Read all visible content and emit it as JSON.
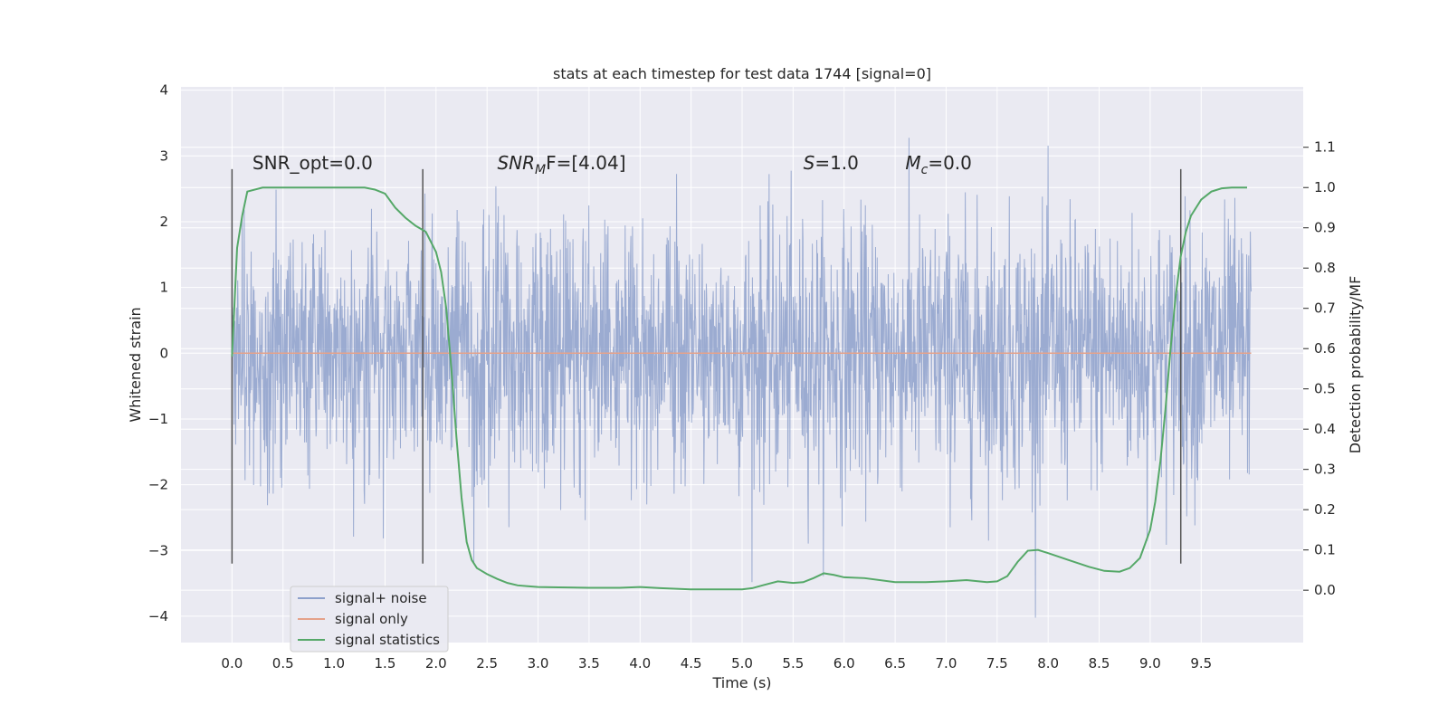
{
  "chart_data": {
    "type": "line",
    "title": "stats at each timestep for test data 1744 [signal=0]",
    "xlabel": "Time (s)",
    "ylabel": "Whitened strain",
    "ylabel_right": "Detection probability/MF",
    "xlim": [
      -0.5,
      10.5
    ],
    "ylim": [
      -4.4,
      4.05
    ],
    "ylim_right": [
      -0.13,
      1.25
    ],
    "xticks": [
      0.0,
      0.5,
      1.0,
      1.5,
      2.0,
      2.5,
      3.0,
      3.5,
      4.0,
      4.5,
      5.0,
      5.5,
      6.0,
      6.5,
      7.0,
      7.5,
      8.0,
      8.5,
      9.0,
      9.5
    ],
    "xtick_labels": [
      "0.0",
      "0.5",
      "1.0",
      "1.5",
      "2.0",
      "2.5",
      "3.0",
      "3.5",
      "4.0",
      "4.5",
      "5.0",
      "5.5",
      "6.0",
      "6.5",
      "7.0",
      "7.5",
      "8.0",
      "8.5",
      "9.0",
      "9.5"
    ],
    "yticks": [
      -4,
      -3,
      -2,
      -1,
      0,
      1,
      2,
      3,
      4
    ],
    "ytick_labels": [
      "−4",
      "−3",
      "−2",
      "−1",
      "0",
      "1",
      "2",
      "3",
      "4"
    ],
    "yticks_right": [
      0.0,
      0.1,
      0.2,
      0.3,
      0.4,
      0.5,
      0.6,
      0.7,
      0.8,
      0.9,
      1.0,
      1.1
    ],
    "ytick_right_labels": [
      "0.0",
      "0.1",
      "0.2",
      "0.3",
      "0.4",
      "0.5",
      "0.6",
      "0.7",
      "0.8",
      "0.9",
      "1.0",
      "1.1"
    ],
    "grid": true,
    "legend_position": "lower-left",
    "series": [
      {
        "name": "signal+ noise",
        "color": "#8da0cb",
        "axis": "left",
        "x_range": [
          0.0,
          9.99
        ],
        "description_values": {
          "core_band": [
            -1.4,
            1.6
          ],
          "extreme_min": -4.05,
          "extreme_max": 3.65
        }
      },
      {
        "name": "signal only",
        "color": "#e5a28a",
        "axis": "left",
        "x": [
          0.0,
          9.99
        ],
        "y": [
          0.0,
          0.0
        ]
      },
      {
        "name": "signal statistics",
        "color": "#55a868",
        "axis": "right",
        "x": [
          0.0,
          0.05,
          0.1,
          0.15,
          0.3,
          0.5,
          1.0,
          1.3,
          1.4,
          1.5,
          1.6,
          1.7,
          1.8,
          1.9,
          2.0,
          2.05,
          2.1,
          2.15,
          2.2,
          2.25,
          2.3,
          2.35,
          2.4,
          2.5,
          2.6,
          2.7,
          2.8,
          2.9,
          3.0,
          3.2,
          3.5,
          3.8,
          4.0,
          4.2,
          4.5,
          4.8,
          5.0,
          5.1,
          5.2,
          5.35,
          5.5,
          5.6,
          5.7,
          5.8,
          5.9,
          6.0,
          6.2,
          6.5,
          6.8,
          7.0,
          7.2,
          7.4,
          7.5,
          7.6,
          7.7,
          7.8,
          7.9,
          8.0,
          8.2,
          8.4,
          8.55,
          8.7,
          8.8,
          8.9,
          9.0,
          9.05,
          9.1,
          9.15,
          9.2,
          9.25,
          9.3,
          9.35,
          9.4,
          9.5,
          9.6,
          9.7,
          9.8,
          9.9,
          9.95
        ],
        "y": [
          0.58,
          0.85,
          0.93,
          0.99,
          1.0,
          1.0,
          1.0,
          1.0,
          0.995,
          0.985,
          0.95,
          0.925,
          0.905,
          0.89,
          0.84,
          0.79,
          0.7,
          0.55,
          0.38,
          0.23,
          0.12,
          0.075,
          0.055,
          0.04,
          0.028,
          0.018,
          0.012,
          0.01,
          0.008,
          0.007,
          0.006,
          0.006,
          0.008,
          0.005,
          0.002,
          0.002,
          0.002,
          0.005,
          0.012,
          0.022,
          0.018,
          0.02,
          0.03,
          0.042,
          0.038,
          0.032,
          0.03,
          0.02,
          0.02,
          0.022,
          0.025,
          0.02,
          0.022,
          0.035,
          0.07,
          0.098,
          0.1,
          0.092,
          0.075,
          0.058,
          0.048,
          0.046,
          0.055,
          0.08,
          0.15,
          0.22,
          0.32,
          0.45,
          0.6,
          0.73,
          0.83,
          0.89,
          0.93,
          0.97,
          0.99,
          0.998,
          1.0,
          1.0,
          1.0
        ]
      }
    ],
    "vlines": [
      0.0,
      1.87,
      9.3
    ],
    "vline_range": [
      -3.2,
      2.8
    ],
    "annotations": [
      {
        "text": "SNR_opt=0.0",
        "x": 0.2,
        "y": 2.8
      },
      {
        "base": "SNR",
        "sub": "M",
        "tail": "F=[4.04]",
        "x": 2.6,
        "y": 2.8
      },
      {
        "base": "S",
        "sub": "",
        "tail": "=1.0",
        "x": 5.6,
        "y": 2.8
      },
      {
        "base": "M",
        "sub": "c",
        "tail": "=0.0",
        "x": 6.6,
        "y": 2.8
      }
    ]
  }
}
